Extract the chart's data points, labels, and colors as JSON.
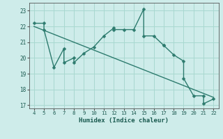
{
  "x": [
    4,
    5,
    5,
    6,
    7,
    7,
    8,
    8,
    9,
    10,
    11,
    12,
    12,
    13,
    14,
    15,
    15,
    16,
    17,
    17,
    18,
    19,
    19,
    20,
    21,
    21,
    22
  ],
  "y": [
    22.2,
    22.2,
    21.8,
    19.4,
    20.6,
    19.7,
    20.0,
    19.7,
    20.3,
    20.7,
    21.4,
    21.9,
    21.8,
    21.8,
    21.8,
    23.1,
    21.4,
    21.4,
    20.8,
    20.8,
    20.2,
    19.8,
    18.7,
    17.6,
    17.6,
    17.1,
    17.4
  ],
  "trend_x": [
    4,
    22
  ],
  "trend_y": [
    22.0,
    17.5
  ],
  "line_color": "#2d7b6e",
  "trend_color": "#2d7b6e",
  "bg_color": "#ceecea",
  "grid_color": "#a8d8d0",
  "xlabel": "Humidex (Indice chaleur)",
  "xlim": [
    3.5,
    22.5
  ],
  "ylim": [
    16.8,
    23.5
  ],
  "xticks": [
    4,
    5,
    6,
    7,
    8,
    9,
    10,
    11,
    12,
    13,
    14,
    15,
    16,
    17,
    18,
    19,
    20,
    21,
    22
  ],
  "yticks": [
    17,
    18,
    19,
    20,
    21,
    22,
    23
  ],
  "markersize": 2.5,
  "linewidth": 1.0
}
